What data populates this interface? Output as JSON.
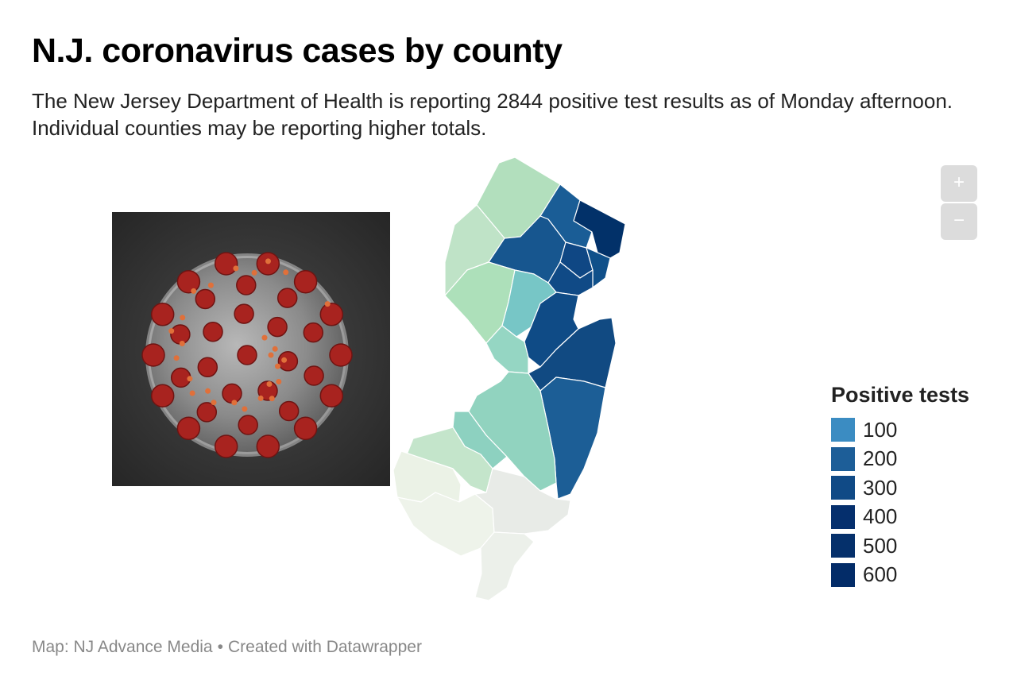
{
  "title": "N.J. coronavirus cases by county",
  "subtitle": "The New Jersey Department of Health is reporting 2844 positive test results as of Monday afternoon. Individual counties may be reporting higher totals.",
  "zoom": {
    "in_label": "+",
    "out_label": "−"
  },
  "legend": {
    "title": "Positive tests",
    "items": [
      {
        "label": "100",
        "color": "#3b8cc2"
      },
      {
        "label": "200",
        "color": "#1d5e98"
      },
      {
        "label": "300",
        "color": "#104a86"
      },
      {
        "label": "400",
        "color": "#052f6d"
      },
      {
        "label": "500",
        "color": "#05306b"
      },
      {
        "label": "600",
        "color": "#032c68"
      }
    ]
  },
  "footer": {
    "source": "Map: NJ Advance Media",
    "credit": "Created with Datawrapper"
  },
  "county_fills": {
    "sussex": "#b2dfbd",
    "warren": "#bfe3c7",
    "passaic": "#1a5d96",
    "bergen": "#023169",
    "morris": "#17568f",
    "essex": "#0f4784",
    "hudson": "#10508a",
    "union": "#104a86",
    "hunterdon": "#ade0ba",
    "somerset": "#77c6c6",
    "middlesex": "#0f4b86",
    "monmouth": "#114a82",
    "mercer": "#95d6c3",
    "burlington": "#91d3bf",
    "ocean": "#1c5e96",
    "camden": "#8dd1c0",
    "gloucester": "#c4e5cb",
    "salem": "#ebf2e6",
    "cumberland": "#eef3ea",
    "atlantic": "#e8ebe7",
    "capemay": "#ecf0ea"
  }
}
